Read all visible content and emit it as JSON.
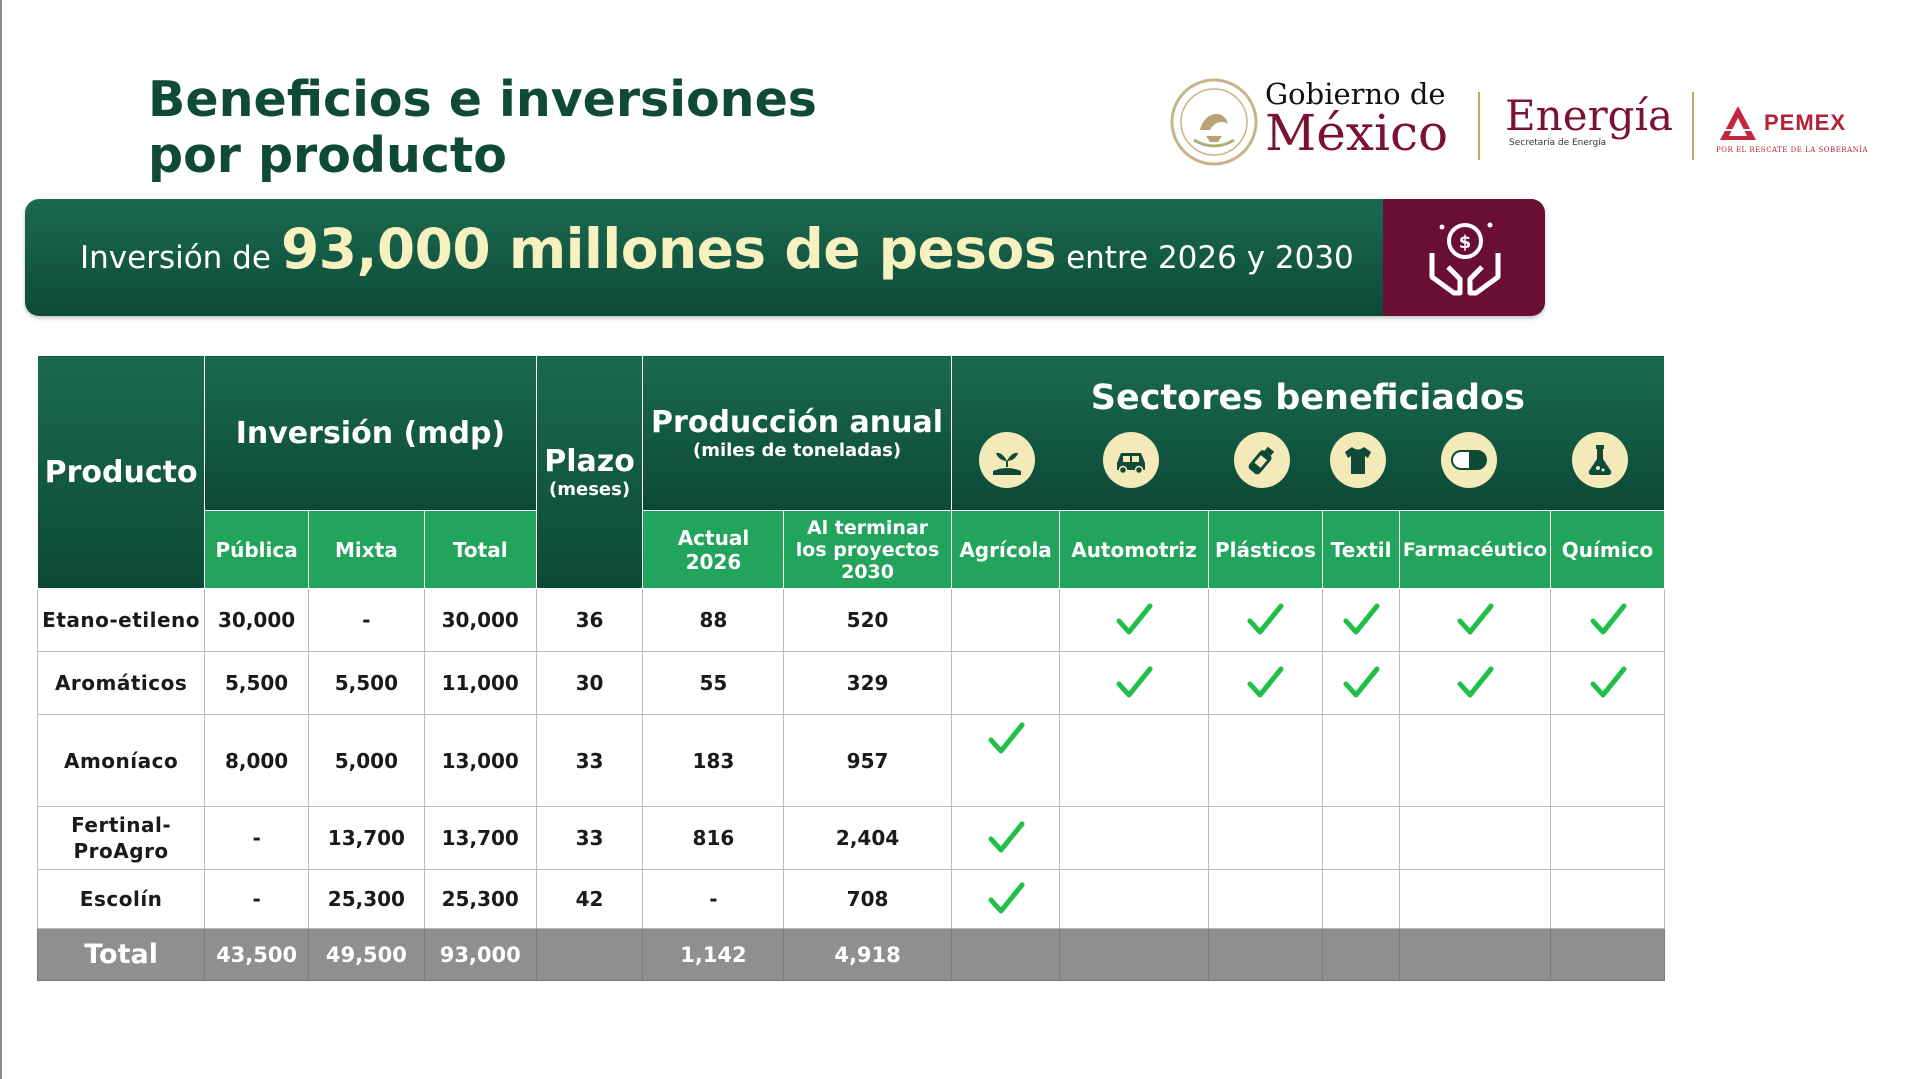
{
  "title": {
    "line1": "Beneficios e inversiones",
    "line2": "por producto"
  },
  "logos": {
    "gobierno_small": "Gobierno de",
    "gobierno_big": "México",
    "energia": "Energía",
    "energia_sub": "Secretaría de Energía",
    "pemex": "PEMEX",
    "pemex_sub": "POR EL RESCATE DE LA SOBERANÍA"
  },
  "banner": {
    "pre": "Inversión de",
    "amount": "93,000 millones de pesos",
    "post": "entre 2026 y 2030",
    "icon": "hands-holding-coin-icon",
    "icon_bg": "#6a0f33"
  },
  "colors": {
    "header_dark": "#0f4a36",
    "header_mid": "#23a45d",
    "check": "#1fbf4a",
    "total_row": "#8f8f8f",
    "brand_wine": "#7a1230"
  },
  "table": {
    "headers": {
      "producto": "Producto",
      "inversion": "Inversión (mdp)",
      "plazo": "Plazo",
      "plazo_sub": "(meses)",
      "produccion": "Producción anual",
      "produccion_sub": "(miles de toneladas)",
      "sectores": "Sectores beneficiados",
      "publica": "Pública",
      "mixta": "Mixta",
      "total": "Total",
      "actual_1": "Actual",
      "actual_2": "2026",
      "terminar_1": "Al terminar",
      "terminar_2": "los proyectos",
      "terminar_3": "2030",
      "agricola": "Agrícola",
      "automotriz": "Automotriz",
      "plasticos": "Plásticos",
      "textil": "Textil",
      "farmaceutico": "Farmacéutico",
      "quimico": "Químico"
    },
    "sector_icons": [
      "plant-hand-icon",
      "car-icon",
      "bottle-icon",
      "tshirt-icon",
      "capsule-icon",
      "flask-icon"
    ],
    "rows": [
      {
        "producto": "Etano-etileno",
        "publica": "30,000",
        "mixta": "-",
        "total": "30,000",
        "plazo": "36",
        "actual": "88",
        "terminar": "520",
        "sectores": [
          false,
          true,
          true,
          true,
          true,
          true
        ]
      },
      {
        "producto": "Aromáticos",
        "publica": "5,500",
        "mixta": "5,500",
        "total": "11,000",
        "plazo": "30",
        "actual": "55",
        "terminar": "329",
        "sectores": [
          false,
          true,
          true,
          true,
          true,
          true
        ]
      },
      {
        "producto": "Amoníaco",
        "publica": "8,000",
        "mixta": "5,000",
        "total": "13,000",
        "plazo": "33",
        "actual": "183",
        "terminar": "957",
        "sectores": [
          true,
          false,
          false,
          false,
          false,
          false
        ]
      },
      {
        "producto_1": "Fertinal-",
        "producto_2": "ProAgro",
        "publica": "-",
        "mixta": "13,700",
        "total": "13,700",
        "plazo": "33",
        "actual": "816",
        "terminar": "2,404",
        "sectores": [
          true,
          false,
          false,
          false,
          false,
          false
        ]
      },
      {
        "producto": "Escolín",
        "publica": "-",
        "mixta": "25,300",
        "total": "25,300",
        "plazo": "42",
        "actual": "-",
        "terminar": "708",
        "sectores": [
          true,
          false,
          false,
          false,
          false,
          false
        ]
      }
    ],
    "total_row": {
      "label": "Total",
      "publica": "43,500",
      "mixta": "49,500",
      "total": "93,000",
      "plazo": "",
      "actual": "1,142",
      "terminar": "4,918"
    }
  }
}
